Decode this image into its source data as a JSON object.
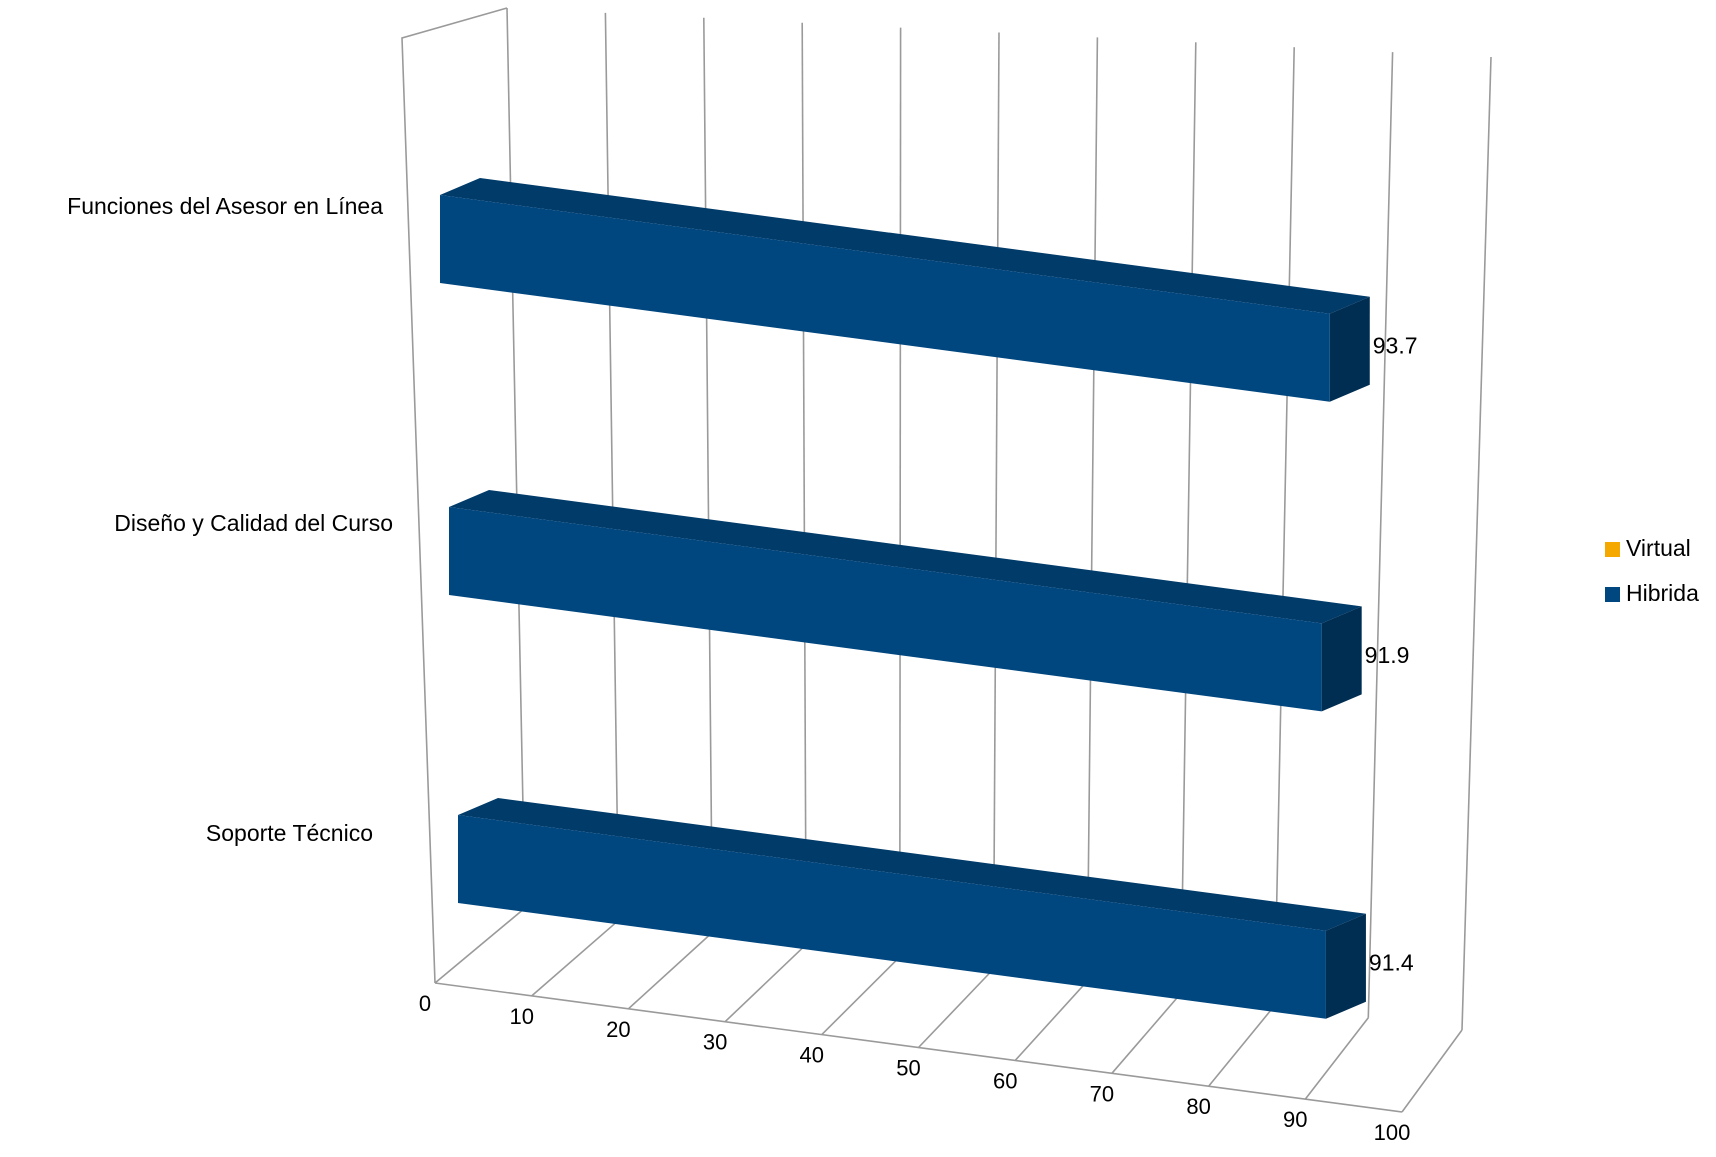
{
  "chart_data": {
    "type": "bar",
    "orientation": "horizontal",
    "style": "3d",
    "categories": [
      "Funciones del Asesor en Línea",
      "Diseño y Calidad del Curso",
      "Soporte Técnico"
    ],
    "series": [
      {
        "name": "Virtual",
        "color": "#F5A800",
        "values": [
          null,
          null,
          null
        ]
      },
      {
        "name": "Hibrida",
        "color": "#00467F",
        "values": [
          93.7,
          91.9,
          91.4
        ]
      }
    ],
    "data_labels": [
      "93.7",
      "91.9",
      "91.4"
    ],
    "x_ticks": [
      "0",
      "10",
      "20",
      "30",
      "40",
      "50",
      "60",
      "70",
      "80",
      "90",
      "100"
    ],
    "xlim": [
      0,
      100
    ],
    "grid": true,
    "legend_position": "right"
  }
}
